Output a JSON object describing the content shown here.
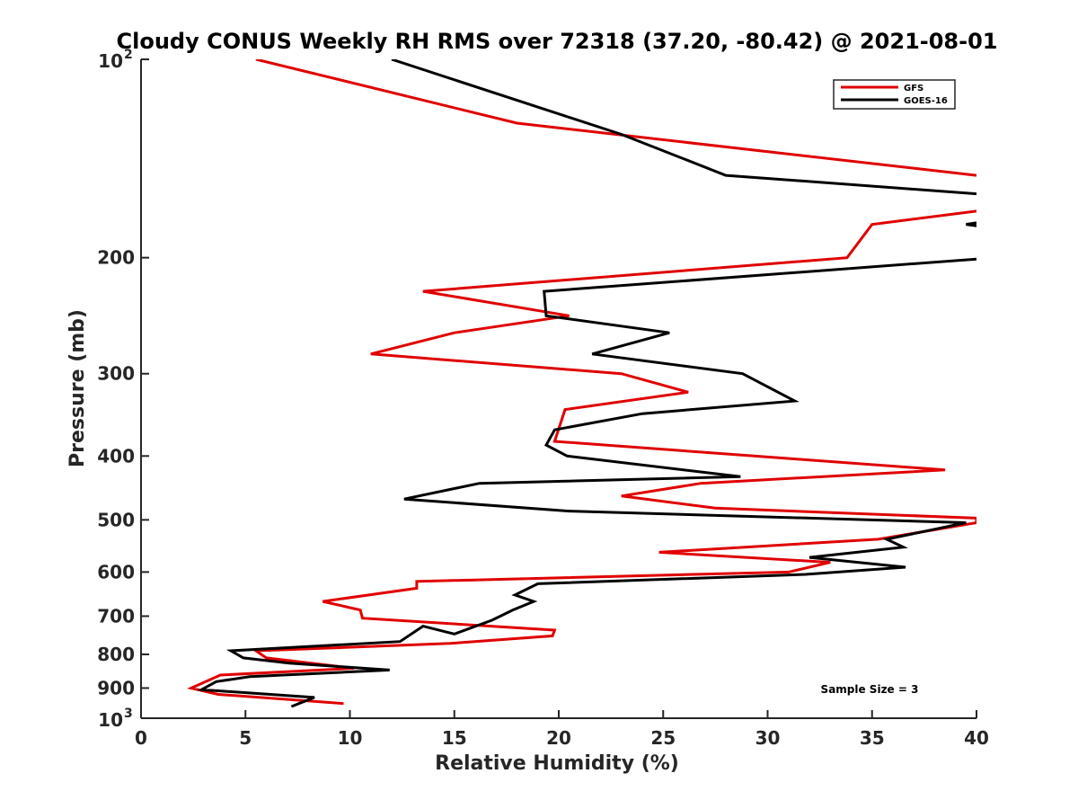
{
  "chart_data": {
    "type": "line",
    "title": "Cloudy CONUS Weekly RH RMS over 72318 (37.20, -80.42) @ 2021-08-01",
    "xlabel": "Relative Humidity (%)",
    "ylabel": "Pressure (mb)",
    "xlim": [
      0,
      40
    ],
    "ylim": [
      100,
      1000
    ],
    "yscale": "log",
    "y_reversed": true,
    "x_ticks": [
      0,
      5,
      10,
      15,
      20,
      25,
      30,
      35,
      40
    ],
    "x_tick_labels": [
      "0",
      "5",
      "10",
      "15",
      "20",
      "25",
      "30",
      "35",
      "40"
    ],
    "y_ticks": [
      {
        "value": 100,
        "base": "10",
        "exp": "2"
      },
      {
        "value": 200,
        "label": "200"
      },
      {
        "value": 300,
        "label": "300"
      },
      {
        "value": 400,
        "label": "400"
      },
      {
        "value": 500,
        "label": "500"
      },
      {
        "value": 600,
        "label": "600"
      },
      {
        "value": 700,
        "label": "700"
      },
      {
        "value": 800,
        "label": "800"
      },
      {
        "value": 900,
        "label": "900"
      },
      {
        "value": 1000,
        "base": "10",
        "exp": "3"
      }
    ],
    "legend": {
      "position": "top-right"
    },
    "annotation": "Sample Size = 3",
    "series": [
      {
        "name": "GFS",
        "color": "#e00000",
        "points": [
          [
            5.5,
            100
          ],
          [
            18,
            125
          ],
          [
            40,
            150
          ],
          null,
          [
            40,
            170
          ],
          [
            35,
            178
          ],
          [
            33.8,
            200
          ],
          [
            13.5,
            225
          ],
          [
            20.5,
            245
          ],
          [
            15,
            260
          ],
          [
            11,
            280
          ],
          [
            23,
            300
          ],
          [
            26.2,
            320
          ],
          [
            20.3,
            340
          ],
          [
            19.8,
            380
          ],
          [
            38.5,
            420
          ],
          [
            26.8,
            440
          ],
          [
            23,
            460
          ],
          [
            27.5,
            480
          ],
          [
            40,
            497
          ],
          [
            40,
            505
          ],
          [
            35.3,
            535
          ],
          [
            24.8,
            560
          ],
          [
            33,
            580
          ],
          [
            31,
            600
          ],
          [
            13.2,
            620
          ],
          [
            13.2,
            635
          ],
          [
            8.7,
            665
          ],
          [
            10.5,
            685
          ],
          [
            10.6,
            705
          ],
          [
            19.8,
            735
          ],
          [
            19.7,
            750
          ],
          [
            14.8,
            770
          ],
          [
            5.5,
            790
          ],
          [
            6,
            810
          ],
          [
            10.2,
            840
          ],
          [
            3.8,
            860
          ],
          [
            2.4,
            900
          ],
          [
            3.7,
            920
          ],
          [
            9.7,
            950
          ]
        ]
      },
      {
        "name": "GOES-16",
        "color": "#000000",
        "points": [
          [
            12,
            100
          ],
          [
            23,
            130
          ],
          [
            28,
            150
          ],
          [
            40,
            160
          ],
          null,
          [
            40,
            177
          ],
          [
            39.5,
            178
          ],
          [
            40,
            179
          ],
          null,
          [
            40,
            201
          ],
          [
            19.3,
            225
          ],
          [
            19.4,
            245
          ],
          [
            25.3,
            260
          ],
          [
            21.6,
            280
          ],
          [
            28.8,
            300
          ],
          [
            31.3,
            330
          ],
          [
            24,
            345
          ],
          [
            19.8,
            365
          ],
          [
            19.4,
            385
          ],
          [
            20.4,
            400
          ],
          [
            28.7,
            430
          ],
          [
            16.2,
            440
          ],
          [
            12.6,
            465
          ],
          [
            20.5,
            485
          ],
          [
            39.5,
            505
          ],
          [
            35.7,
            535
          ],
          [
            36.5,
            550
          ],
          [
            32,
            570
          ],
          [
            36.6,
            590
          ],
          [
            31.8,
            605
          ],
          [
            19,
            625
          ],
          [
            17.9,
            650
          ],
          [
            18.8,
            665
          ],
          [
            17.8,
            685
          ],
          [
            16.8,
            710
          ],
          [
            15,
            745
          ],
          [
            13.5,
            725
          ],
          [
            12.4,
            765
          ],
          [
            4.3,
            790
          ],
          [
            4.9,
            810
          ],
          [
            7.1,
            825
          ],
          [
            11.9,
            845
          ],
          [
            5.2,
            865
          ],
          [
            3.6,
            880
          ],
          [
            2.9,
            905
          ],
          [
            8.3,
            930
          ],
          [
            7.2,
            960
          ]
        ]
      }
    ]
  }
}
